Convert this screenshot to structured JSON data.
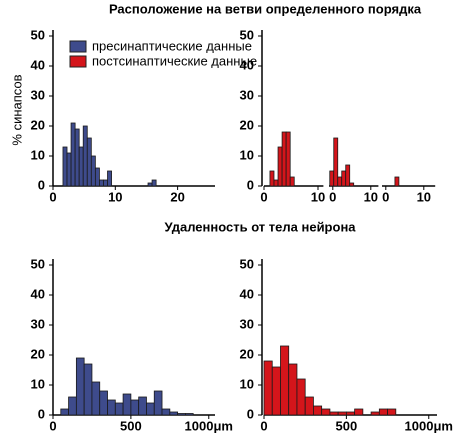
{
  "chart_data": [
    {
      "type": "histogram",
      "title": "Расположение на ветви определенного порядка",
      "ylabel": "% синапсов",
      "series": [
        {
          "name": "пресинаптические данные",
          "color": "#3e4b8c",
          "bins": [
            1.6,
            2.25,
            2.9,
            3.55,
            4.2,
            4.85,
            5.5,
            6.15,
            6.8,
            7.45,
            8.1,
            8.75,
            9.4,
            10.05,
            10.7,
            11.35,
            12,
            12.65,
            13.3,
            13.95,
            14.6,
            15.25,
            15.9,
            16.55
          ],
          "values": [
            13,
            11,
            21,
            19,
            13,
            20,
            16,
            10,
            6,
            2,
            2,
            5,
            0,
            0,
            0,
            0,
            0,
            0,
            0,
            0,
            0,
            1,
            2
          ]
        }
      ],
      "xlim": [
        0,
        26
      ],
      "xticks": [
        0,
        10,
        20
      ],
      "ylim": [
        0,
        50
      ],
      "yticks": [
        0,
        10,
        20,
        30,
        40,
        50
      ]
    },
    {
      "type": "histogram",
      "series": [
        {
          "name": "постсинаптические данные",
          "color": "#d4151b"
        }
      ],
      "segments": [
        {
          "xlim": [
            0,
            11
          ],
          "xticks": [
            0,
            10
          ],
          "bins": [
            1.1,
            1.85,
            2.6,
            3.35,
            4.1,
            4.85,
            5.6
          ],
          "values": [
            5,
            2,
            13,
            18,
            18,
            3
          ]
        },
        {
          "xlim": [
            -1,
            12
          ],
          "xticks": [
            0,
            10
          ],
          "bins": [
            -0.8,
            0.25,
            1.3,
            2.35,
            3.4,
            4.45,
            5.5
          ],
          "values": [
            5,
            16,
            3,
            5,
            7,
            1
          ]
        },
        {
          "xlim": [
            -1,
            13
          ],
          "xticks": [
            0,
            10
          ],
          "bins": [
            2.4,
            3.45
          ],
          "values": [
            3
          ]
        }
      ],
      "ylim": [
        0,
        50
      ],
      "yticks": [
        0,
        10,
        20,
        30,
        40,
        50
      ]
    },
    {
      "type": "histogram",
      "title": "Удаленность от тела нейрона",
      "series": [
        {
          "color": "#3e4b8c",
          "bins": [
            50,
            100,
            150,
            200,
            250,
            300,
            350,
            400,
            450,
            500,
            550,
            600,
            650,
            700,
            750,
            800,
            850,
            900
          ],
          "values": [
            2,
            6,
            19,
            17,
            11,
            8,
            5,
            4,
            7,
            5,
            6,
            4,
            8,
            2,
            1,
            0.5,
            0.5
          ]
        }
      ],
      "xlim": [
        0,
        1040
      ],
      "xticks": [
        0,
        500,
        {
          "value": 1000,
          "label": "1000μm"
        }
      ],
      "ylim": [
        0,
        50
      ],
      "yticks": [
        0,
        10,
        20,
        30,
        40,
        50
      ]
    },
    {
      "type": "histogram",
      "series": [
        {
          "color": "#d4151b",
          "bins": [
            0,
            50,
            100,
            150,
            200,
            250,
            300,
            350,
            400,
            450,
            500,
            550,
            600,
            650,
            700,
            750,
            800
          ],
          "values": [
            18,
            16,
            23,
            17,
            12,
            6,
            3,
            2,
            1,
            1,
            1,
            2,
            0,
            1,
            2,
            2
          ]
        }
      ],
      "xlim": [
        0,
        1050
      ],
      "xticks": [
        0,
        500,
        {
          "value": 1000,
          "label": "1000μm"
        }
      ],
      "ylim": [
        0,
        50
      ],
      "yticks": [
        0,
        10,
        20,
        30,
        40,
        50
      ]
    }
  ]
}
